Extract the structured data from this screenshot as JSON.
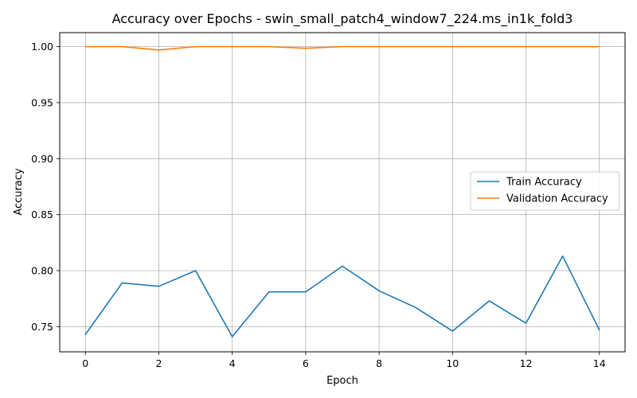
{
  "chart_data": {
    "type": "line",
    "title": "Accuracy over Epochs - swin_small_patch4_window7_224.ms_in1k_fold3",
    "xlabel": "Epoch",
    "ylabel": "Accuracy",
    "xlim": [
      -0.7,
      14.7
    ],
    "ylim": [
      0.7275,
      1.0125
    ],
    "xticks": [
      0,
      2,
      4,
      6,
      8,
      10,
      12,
      14
    ],
    "yticks": [
      0.75,
      0.8,
      0.85,
      0.9,
      0.95,
      1.0
    ],
    "ytick_labels": [
      "0.75",
      "0.80",
      "0.85",
      "0.90",
      "0.95",
      "1.00"
    ],
    "grid": true,
    "legend_position": "center-right",
    "x": [
      0,
      1,
      2,
      3,
      4,
      5,
      6,
      7,
      8,
      9,
      10,
      11,
      12,
      13,
      14
    ],
    "series": [
      {
        "name": "Train Accuracy",
        "color": "#1f77b4",
        "values": [
          0.743,
          0.789,
          0.786,
          0.8,
          0.741,
          0.781,
          0.781,
          0.804,
          0.782,
          0.767,
          0.746,
          0.773,
          0.753,
          0.813,
          0.747
        ]
      },
      {
        "name": "Validation Accuracy",
        "color": "#ff7f0e",
        "values": [
          1.0,
          1.0,
          0.997,
          1.0,
          1.0,
          1.0,
          0.9985,
          1.0,
          1.0,
          1.0,
          1.0,
          1.0,
          1.0,
          1.0,
          1.0
        ]
      }
    ]
  }
}
